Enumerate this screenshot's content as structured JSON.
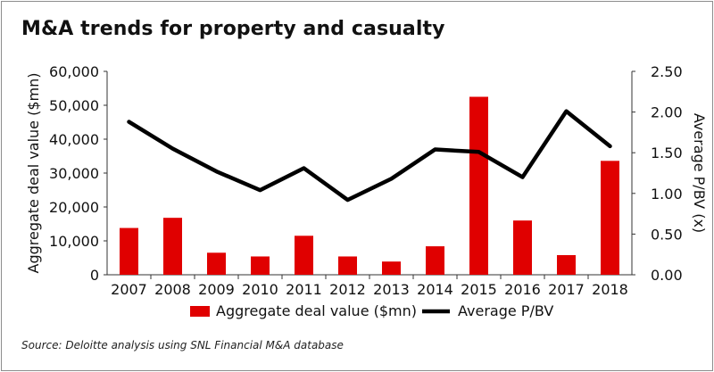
{
  "title": "M&A trends for property and casualty",
  "source": "Source: Deloitte analysis using SNL Financial M&A database",
  "colors": {
    "bar": "#e00000",
    "line": "#000000",
    "axis": "#333333"
  },
  "chart_data": {
    "type": "bar",
    "categories": [
      "2007",
      "2008",
      "2009",
      "2010",
      "2011",
      "2012",
      "2013",
      "2014",
      "2015",
      "2016",
      "2017",
      "2018"
    ],
    "series": [
      {
        "name": "Aggregate deal value ($mn)",
        "type": "bar",
        "axis": "left",
        "values": [
          13800,
          16800,
          6500,
          5400,
          11500,
          5400,
          3900,
          8400,
          52500,
          16000,
          5800,
          33600
        ]
      },
      {
        "name": "Average P/BV",
        "type": "line",
        "axis": "right",
        "values": [
          1.88,
          1.55,
          1.27,
          1.04,
          1.31,
          0.92,
          1.18,
          1.54,
          1.51,
          1.2,
          2.01,
          1.58
        ]
      }
    ],
    "ylabel": "Aggregate deal value ($mn)",
    "ylim": [
      0,
      60000
    ],
    "yticks": [
      "0",
      "10,000",
      "20,000",
      "30,000",
      "40,000",
      "50,000",
      "60,000"
    ],
    "y2label": "Average P/BV (x)",
    "y2lim": [
      0,
      2.5
    ],
    "y2ticks": [
      "0.00",
      "0.50",
      "1.00",
      "1.50",
      "2.00",
      "2.50"
    ],
    "grid": false,
    "legend_position": "bottom"
  }
}
